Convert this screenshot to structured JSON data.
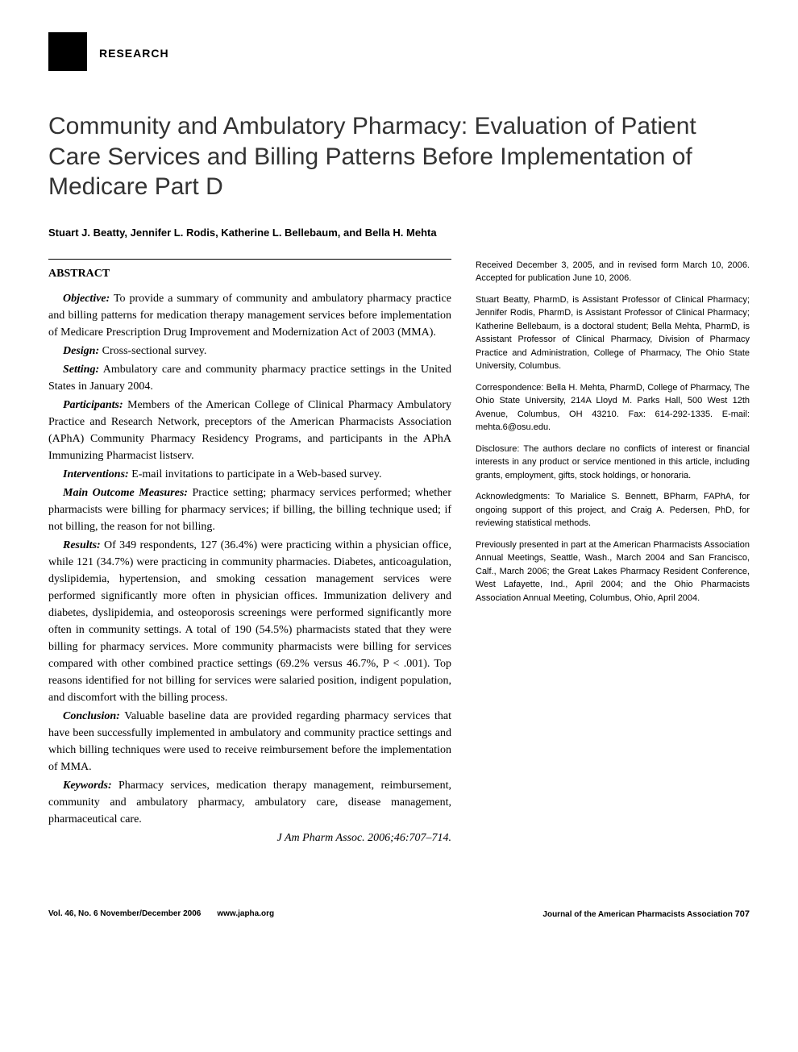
{
  "header": {
    "section_label": "RESEARCH"
  },
  "title": "Community and Ambulatory Pharmacy: Evaluation of Patient Care Services and Billing Patterns Before Implementation of Medicare Part D",
  "authors": "Stuart J. Beatty, Jennifer L. Rodis, Katherine L. Bellebaum, and Bella H. Mehta",
  "abstract": {
    "heading": "ABSTRACT",
    "sections": [
      {
        "label": "Objective:",
        "text": " To provide a summary of community and ambulatory pharmacy practice and billing patterns for medication therapy management services before implementation of Medicare Prescription Drug Improvement and Modernization Act of 2003 (MMA)."
      },
      {
        "label": "Design:",
        "text": " Cross-sectional survey."
      },
      {
        "label": "Setting:",
        "text": " Ambulatory care and community pharmacy practice settings in the United States in January 2004."
      },
      {
        "label": "Participants:",
        "text": " Members of the American College of Clinical Pharmacy Ambulatory Practice and Research Network, preceptors of the American Pharmacists Association (APhA) Community Pharmacy Residency Programs, and participants in the APhA Immunizing Pharmacist listserv."
      },
      {
        "label": "Interventions:",
        "text": " E-mail invitations to participate in a Web-based survey."
      },
      {
        "label": "Main Outcome Measures:",
        "text": " Practice setting; pharmacy services performed; whether pharmacists were billing for pharmacy services; if billing, the billing technique used; if not billing, the reason for not billing."
      },
      {
        "label": "Results:",
        "text": " Of 349 respondents, 127 (36.4%) were practicing within a physician office, while 121 (34.7%) were practicing in community pharmacies. Diabetes, anticoagulation, dyslipidemia, hypertension, and smoking cessation management services were performed significantly more often in physician offices. Immunization delivery and diabetes, dyslipidemia, and osteoporosis screenings were performed significantly more often in community settings. A total of 190 (54.5%) pharmacists stated that they were billing for pharmacy services. More community pharmacists were billing for services compared with other combined practice settings (69.2% versus 46.7%, P < .001). Top reasons identified for not billing for services were salaried position, indigent population, and discomfort with the billing process."
      },
      {
        "label": "Conclusion:",
        "text": " Valuable baseline data are provided regarding pharmacy services that have been successfully implemented in ambulatory and community practice settings and which billing techniques were used to receive reimbursement before the implementation of MMA."
      },
      {
        "label": "Keywords:",
        "text": " Pharmacy services, medication therapy management, reimbursement, community and ambulatory pharmacy, ambulatory care, disease management, pharmaceutical care."
      }
    ],
    "citation": "J Am Pharm Assoc. 2006;46:707–714."
  },
  "sidebar": {
    "received": "Received December 3, 2005, and in revised form March 10, 2006. Accepted for publication June 10, 2006.",
    "bios": "Stuart Beatty, PharmD, is Assistant Professor of Clinical Pharmacy; Jennifer Rodis, PharmD, is Assistant Professor of Clinical Pharmacy; Katherine Bellebaum, is a doctoral student; Bella Mehta, PharmD, is Assistant Professor of Clinical Pharmacy, Division of Pharmacy Practice and Administration, College of Pharmacy, The Ohio State University, Columbus.",
    "correspondence": "Correspondence: Bella H. Mehta, PharmD, College of Pharmacy, The Ohio State University, 214A Lloyd M. Parks Hall, 500 West 12th Avenue, Columbus, OH 43210. Fax: 614-292-1335. E-mail: mehta.6@osu.edu.",
    "disclosure": "Disclosure: The authors declare no conflicts of interest or financial interests in any product or service mentioned in this article, including grants, employment, gifts, stock holdings, or honoraria.",
    "acknowledgments": "Acknowledgments: To Marialice S. Bennett, BPharm, FAPhA, for ongoing support of this project, and Craig A. Pedersen, PhD, for reviewing statistical methods.",
    "presented": "Previously presented in part at the American Pharmacists Association Annual Meetings, Seattle, Wash., March 2004 and San Francisco, Calf., March 2006; the Great Lakes Pharmacy Resident Conference, West Lafayette, Ind., April 2004; and the Ohio Pharmacists Association Annual Meeting, Columbus, Ohio, April 2004."
  },
  "footer": {
    "issue": "Vol. 46, No. 6    November/December 2006",
    "url": "www.japha.org",
    "journal": "Journal of the American Pharmacists Association",
    "page": "707"
  }
}
